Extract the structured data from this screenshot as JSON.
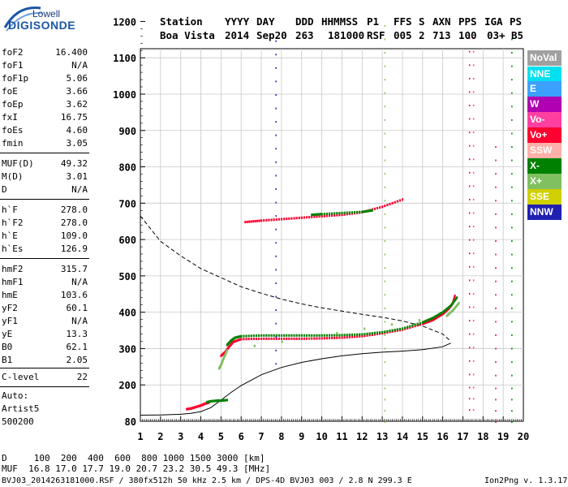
{
  "logo": {
    "top": "Lowell",
    "bottom": "DIGISONDE"
  },
  "header": {
    "labels": [
      "Station",
      "YYYY",
      "DAY",
      "DDD",
      "HHMMSS",
      "P1",
      "FFS",
      "S",
      "AXN",
      "PPS",
      "IGA",
      "PS"
    ],
    "values": [
      "Boa Vista",
      "2014",
      "Sep20",
      "263",
      "181000",
      "RSF",
      "005",
      "2",
      "713",
      "100",
      "03+",
      "B5"
    ]
  },
  "params": {
    "group1": [
      {
        "name": "foF2",
        "value": "16.400"
      },
      {
        "name": "foF1",
        "value": "N/A"
      },
      {
        "name": "foF1p",
        "value": "5.06"
      },
      {
        "name": "foE",
        "value": "3.66"
      },
      {
        "name": "foEp",
        "value": "3.62"
      },
      {
        "name": "fxI",
        "value": "16.75"
      },
      {
        "name": "foEs",
        "value": "4.60"
      },
      {
        "name": "fmin",
        "value": "3.05"
      }
    ],
    "group2": [
      {
        "name": "MUF(D)",
        "value": "49.32"
      },
      {
        "name": "M(D)",
        "value": "3.01"
      },
      {
        "name": "D",
        "value": "N/A"
      }
    ],
    "group3": [
      {
        "name": "h`F",
        "value": "278.0"
      },
      {
        "name": "h`F2",
        "value": "278.0"
      },
      {
        "name": "h`E",
        "value": "109.0"
      },
      {
        "name": "h`Es",
        "value": "126.9"
      }
    ],
    "group4": [
      {
        "name": "hmF2",
        "value": "315.7"
      },
      {
        "name": "hmF1",
        "value": "N/A"
      },
      {
        "name": "hmE",
        "value": "103.6"
      },
      {
        "name": "yF2",
        "value": "60.1"
      },
      {
        "name": "yF1",
        "value": "N/A"
      },
      {
        "name": "yE",
        "value": "13.3"
      },
      {
        "name": "B0",
        "value": "62.1"
      },
      {
        "name": "B1",
        "value": "2.05"
      }
    ],
    "group5": [
      {
        "name": "C-level",
        "value": "22"
      }
    ],
    "auto": [
      "Auto:",
      "Artist5",
      "500200"
    ]
  },
  "legend": [
    {
      "label": "NoVal",
      "color": "#a0a0a0"
    },
    {
      "label": "NNE",
      "color": "#00e0f0"
    },
    {
      "label": "E",
      "color": "#3ca0ff"
    },
    {
      "label": "W",
      "color": "#b000b0"
    },
    {
      "label": "Vo-",
      "color": "#ff40a0"
    },
    {
      "label": "Vo+",
      "color": "#ff0030"
    },
    {
      "label": "SSW",
      "color": "#ffb0a8"
    },
    {
      "label": "X-",
      "color": "#008000"
    },
    {
      "label": "X+",
      "color": "#80c060"
    },
    {
      "label": "SSE",
      "color": "#d0d000"
    },
    {
      "label": "NNW",
      "color": "#2020b0"
    }
  ],
  "footer": {
    "d_row": "D     100  200  400  600  800 1000 1500 3000 [km]",
    "muf_row": "MUF  16.8 17.0 17.7 19.0 20.7 23.2 30.5 49.3 [MHz]",
    "file_line": "BVJ03_2014263181000.RSF / 380fx512h 50 kHz 2.5 km / DPS-4D BVJ03 003 / 2.8 N 299.3 E",
    "version": "Ion2Png v. 1.3.17"
  },
  "chart_data": {
    "type": "scatter",
    "x_ticks": [
      1,
      2,
      3,
      4,
      5,
      6,
      7,
      8,
      9,
      10,
      11,
      12,
      13,
      14,
      15,
      16,
      17,
      18,
      19,
      20
    ],
    "y_ticks": [
      80,
      200,
      300,
      400,
      500,
      600,
      700,
      800,
      900,
      1000,
      1100,
      1200
    ],
    "xlim": [
      1,
      20
    ],
    "ylim": [
      80,
      1200
    ],
    "grid": true,
    "series": [
      {
        "name": "Vo+",
        "color": "#ff0030",
        "x": [
          5.0,
          5.2,
          5.4,
          5.6,
          6,
          7,
          8,
          9,
          10,
          11,
          12,
          13,
          14,
          15,
          15.5,
          16,
          16.3,
          16.5,
          16.6
        ],
        "y": [
          280,
          290,
          305,
          318,
          326,
          327,
          327,
          327,
          328,
          330,
          334,
          342,
          352,
          368,
          378,
          395,
          410,
          425,
          445
        ]
      },
      {
        "name": "X-",
        "color": "#008000",
        "x": [
          5.3,
          5.5,
          5.7,
          6,
          7,
          8,
          9,
          10,
          11,
          12,
          13,
          14,
          15,
          15.5,
          16,
          16.4,
          16.7
        ],
        "y": [
          310,
          322,
          330,
          334,
          336,
          336,
          336,
          336,
          337,
          339,
          345,
          355,
          372,
          384,
          400,
          418,
          440
        ]
      },
      {
        "name": "X+",
        "color": "#80c060",
        "x": [
          4.9,
          5.0,
          5.1,
          5.2,
          5.3,
          16.2,
          16.5,
          16.8
        ],
        "y": [
          245,
          255,
          270,
          282,
          295,
          390,
          405,
          425
        ]
      },
      {
        "name": "Vo+",
        "color": "#ff0030",
        "x": [
          3.3,
          3.5,
          3.7,
          4.0,
          4.2,
          4.4
        ],
        "y": [
          120,
          122,
          126,
          132,
          138,
          142
        ]
      },
      {
        "name": "X-",
        "color": "#008000",
        "x": [
          4.3,
          4.5,
          4.8,
          5.0,
          5.3
        ],
        "y": [
          143,
          146,
          148,
          148,
          150
        ]
      },
      {
        "name": "Vo+",
        "color": "#ff0030",
        "x": [
          6.2,
          7,
          8,
          9,
          10,
          11,
          12,
          13,
          14
        ],
        "y": [
          648,
          652,
          656,
          660,
          664,
          668,
          675,
          690,
          710
        ]
      },
      {
        "name": "X-",
        "color": "#008000",
        "x": [
          9.5,
          10,
          11,
          12,
          12.5
        ],
        "y": [
          668,
          670,
          673,
          676,
          680
        ]
      }
    ],
    "profile_solid": {
      "x": [
        1,
        2,
        3,
        3.5,
        4,
        4.5,
        5,
        5.5,
        6,
        7,
        8,
        9,
        10,
        11,
        12,
        13,
        14,
        15,
        16,
        16.4
      ],
      "y": [
        100,
        101,
        103,
        106,
        112,
        125,
        150,
        175,
        198,
        228,
        248,
        262,
        272,
        280,
        286,
        290,
        293,
        297,
        305,
        315
      ]
    },
    "profile_dashed": {
      "x": [
        1,
        2,
        3,
        4,
        5,
        6,
        7,
        8,
        9,
        10,
        11,
        12,
        13,
        14,
        15,
        16,
        16.4
      ],
      "y": [
        665,
        595,
        555,
        520,
        495,
        470,
        452,
        436,
        423,
        412,
        403,
        394,
        386,
        376,
        362,
        340,
        320
      ]
    }
  }
}
